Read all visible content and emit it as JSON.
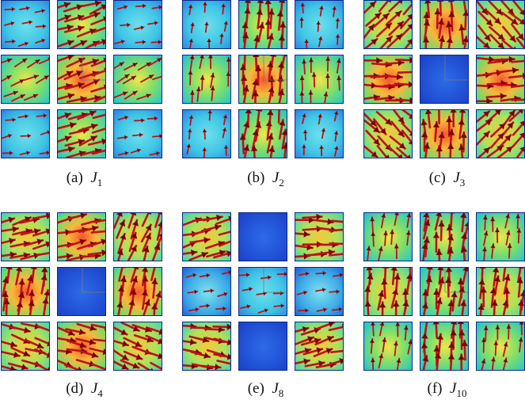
{
  "panels": [
    {
      "id": "a",
      "caption_prefix": "(a)",
      "symbol": "J",
      "subscript": "1",
      "cells": [
        {
          "field": "low",
          "arrow_density": "sparse",
          "arrow_angle": 10
        },
        {
          "field": "mid",
          "arrow_density": "dense",
          "arrow_angle": 20
        },
        {
          "field": "low",
          "arrow_density": "sparse",
          "arrow_angle": 10
        },
        {
          "field": "mid",
          "arrow_density": "medium",
          "arrow_angle": 25
        },
        {
          "field": "high",
          "arrow_density": "dense",
          "arrow_angle": 20
        },
        {
          "field": "mid",
          "arrow_density": "medium",
          "arrow_angle": 25
        },
        {
          "field": "low",
          "arrow_density": "sparse",
          "arrow_angle": 10
        },
        {
          "field": "mid",
          "arrow_density": "dense",
          "arrow_angle": 20
        },
        {
          "field": "low",
          "arrow_density": "sparse",
          "arrow_angle": 10
        }
      ]
    },
    {
      "id": "b",
      "caption_prefix": "(b)",
      "symbol": "J",
      "subscript": "2",
      "cells": [
        {
          "field": "low",
          "arrow_density": "sparse",
          "arrow_angle": 85
        },
        {
          "field": "mid",
          "arrow_density": "dense",
          "arrow_angle": 85
        },
        {
          "field": "low",
          "arrow_density": "sparse",
          "arrow_angle": 85
        },
        {
          "field": "mid",
          "arrow_density": "medium",
          "arrow_angle": 85
        },
        {
          "field": "high",
          "arrow_density": "dense",
          "arrow_angle": 85
        },
        {
          "field": "mid",
          "arrow_density": "medium",
          "arrow_angle": 85
        },
        {
          "field": "low",
          "arrow_density": "sparse",
          "arrow_angle": 85
        },
        {
          "field": "mid",
          "arrow_density": "dense",
          "arrow_angle": 85
        },
        {
          "field": "low",
          "arrow_density": "sparse",
          "arrow_angle": 85
        }
      ]
    },
    {
      "id": "c",
      "caption_prefix": "(c)",
      "symbol": "J",
      "subscript": "3",
      "cells": [
        {
          "field": "warm",
          "arrow_density": "dense",
          "arrow_angle": 45
        },
        {
          "field": "high",
          "arrow_density": "dense",
          "arrow_angle": 90
        },
        {
          "field": "warm",
          "arrow_density": "dense",
          "arrow_angle": -45
        },
        {
          "field": "high",
          "arrow_density": "dense",
          "arrow_angle": 0
        },
        {
          "field": "none",
          "arrow_density": "none",
          "arrow_angle": 0
        },
        {
          "field": "high",
          "arrow_density": "dense",
          "arrow_angle": 0
        },
        {
          "field": "warm",
          "arrow_density": "dense",
          "arrow_angle": -45
        },
        {
          "field": "high",
          "arrow_density": "dense",
          "arrow_angle": 90
        },
        {
          "field": "warm",
          "arrow_density": "dense",
          "arrow_angle": 45
        }
      ]
    },
    {
      "id": "d",
      "caption_prefix": "(d)",
      "symbol": "J",
      "subscript": "4",
      "cells": [
        {
          "field": "warm",
          "arrow_density": "dense",
          "arrow_angle": 15
        },
        {
          "field": "high",
          "arrow_density": "dense",
          "arrow_angle": 10
        },
        {
          "field": "warm",
          "arrow_density": "dense",
          "arrow_angle": 70
        },
        {
          "field": "high",
          "arrow_density": "dense",
          "arrow_angle": 80
        },
        {
          "field": "none",
          "arrow_density": "none",
          "arrow_angle": 0
        },
        {
          "field": "high",
          "arrow_density": "dense",
          "arrow_angle": 80
        },
        {
          "field": "warm",
          "arrow_density": "dense",
          "arrow_angle": -20
        },
        {
          "field": "high",
          "arrow_density": "dense",
          "arrow_angle": -15
        },
        {
          "field": "warm",
          "arrow_density": "dense",
          "arrow_angle": -25
        }
      ]
    },
    {
      "id": "e",
      "caption_prefix": "(e)",
      "symbol": "J",
      "subscript": "8",
      "cells": [
        {
          "field": "warm",
          "arrow_density": "dense",
          "arrow_angle": 15
        },
        {
          "field": "none",
          "arrow_density": "none",
          "arrow_angle": 0
        },
        {
          "field": "warm",
          "arrow_density": "dense",
          "arrow_angle": 0
        },
        {
          "field": "coolside",
          "arrow_density": "sparse",
          "arrow_angle": 10
        },
        {
          "field": "low",
          "arrow_density": "sparse",
          "arrow_angle": 10
        },
        {
          "field": "coolside",
          "arrow_density": "sparse",
          "arrow_angle": 10
        },
        {
          "field": "warm",
          "arrow_density": "dense",
          "arrow_angle": -10
        },
        {
          "field": "none",
          "arrow_density": "none",
          "arrow_angle": 0
        },
        {
          "field": "warm",
          "arrow_density": "dense",
          "arrow_angle": 15
        }
      ]
    },
    {
      "id": "f",
      "caption_prefix": "(f)",
      "symbol": "J",
      "subscript": "10",
      "cells": [
        {
          "field": "mid",
          "arrow_density": "medium",
          "arrow_angle": 85
        },
        {
          "field": "mid",
          "arrow_density": "dense",
          "arrow_angle": 85
        },
        {
          "field": "mid",
          "arrow_density": "medium",
          "arrow_angle": 85
        },
        {
          "field": "warm",
          "arrow_density": "dense",
          "arrow_angle": 85
        },
        {
          "field": "mid",
          "arrow_density": "dense",
          "arrow_angle": 85
        },
        {
          "field": "warm",
          "arrow_density": "dense",
          "arrow_angle": 85
        },
        {
          "field": "mid",
          "arrow_density": "medium",
          "arrow_angle": 85
        },
        {
          "field": "mid",
          "arrow_density": "dense",
          "arrow_angle": 85
        },
        {
          "field": "mid",
          "arrow_density": "medium",
          "arrow_angle": 85
        }
      ]
    }
  ],
  "colors": {
    "arrow": "#c0101a",
    "arrow_edge": "#7a0008",
    "frame": "#0a2a8a",
    "axis_line": "#7a7a7a",
    "caption_text": "#111111"
  }
}
